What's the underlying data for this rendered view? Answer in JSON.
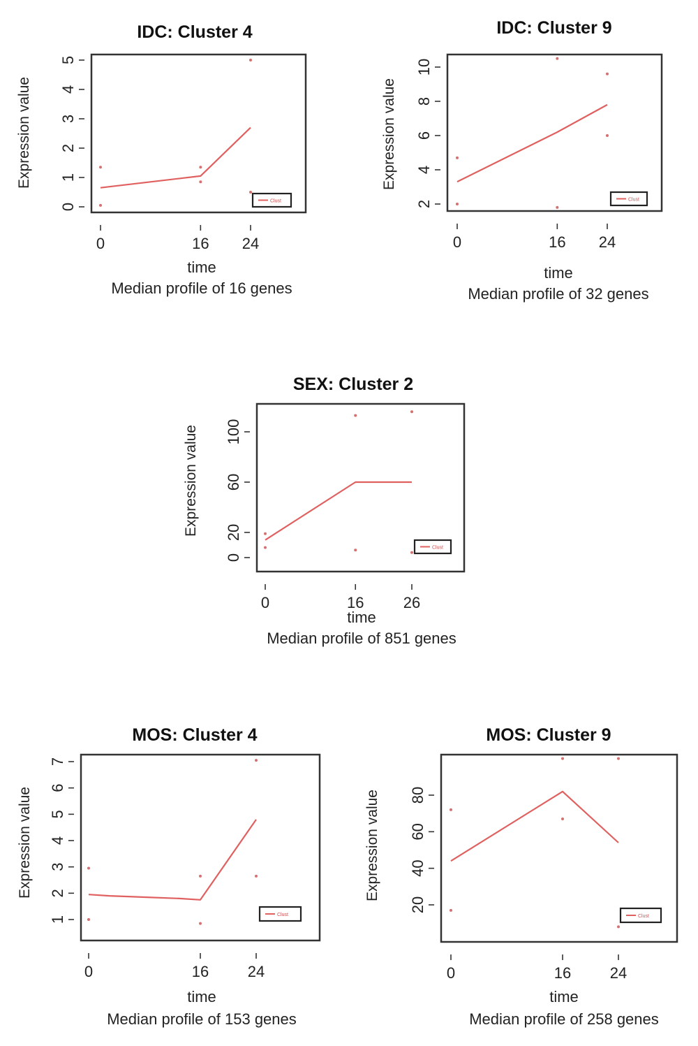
{
  "charts": [
    {
      "id": "idc-cluster-4",
      "title": "IDC: Cluster 4",
      "xlabel": "time",
      "ylabel": "Expression value",
      "caption": "Median profile of 16 genes",
      "chart_data": {
        "type": "line",
        "x_ticks": [
          0,
          16,
          24
        ],
        "y_ticks": [
          0,
          1,
          2,
          3,
          4,
          5
        ],
        "series": [
          {
            "x": [
              0,
              16,
              24
            ],
            "y": [
              0.65,
              1.05,
              2.7
            ]
          }
        ],
        "points": [
          [
            0,
            1.35
          ],
          [
            0,
            0.05
          ],
          [
            16,
            1.35
          ],
          [
            16,
            0.85
          ],
          [
            24,
            5.0
          ],
          [
            24,
            0.5
          ]
        ],
        "legend": "Clust"
      }
    },
    {
      "id": "idc-cluster-9",
      "title": "IDC: Cluster 9",
      "xlabel": "time",
      "ylabel": "Expression value",
      "caption": "Median profile of 32 genes",
      "chart_data": {
        "type": "line",
        "x_ticks": [
          0,
          16,
          24
        ],
        "y_ticks": [
          2,
          4,
          6,
          8,
          10
        ],
        "series": [
          {
            "x": [
              0,
              16,
              24
            ],
            "y": [
              3.3,
              6.2,
              7.8
            ]
          }
        ],
        "points": [
          [
            0,
            4.7
          ],
          [
            0,
            2.0
          ],
          [
            16,
            10.5
          ],
          [
            16,
            1.8
          ],
          [
            24,
            9.6
          ],
          [
            24,
            6.0
          ]
        ],
        "legend": "Clust"
      }
    },
    {
      "id": "sex-cluster-2",
      "title": "SEX: Cluster 2",
      "xlabel": "time",
      "ylabel": "Expression value",
      "caption": "Median profile of 851 genes",
      "chart_data": {
        "type": "line",
        "x_ticks": [
          0,
          16,
          26
        ],
        "y_ticks": [
          0,
          20,
          60,
          100
        ],
        "series": [
          {
            "x": [
              0,
              16,
              26
            ],
            "y": [
              14,
              60,
              60
            ]
          }
        ],
        "points": [
          [
            0,
            19
          ],
          [
            0,
            8
          ],
          [
            16,
            113
          ],
          [
            16,
            6
          ],
          [
            26,
            116
          ],
          [
            26,
            4
          ]
        ],
        "legend": "Clust"
      }
    },
    {
      "id": "mos-cluster-4",
      "title": "MOS: Cluster 4",
      "xlabel": "time",
      "ylabel": "Expression value",
      "caption": "Median profile of 153 genes",
      "chart_data": {
        "type": "line",
        "x_ticks": [
          0,
          16,
          24
        ],
        "y_ticks": [
          1,
          2,
          3,
          4,
          5,
          6,
          7
        ],
        "series": [
          {
            "x": [
              0,
              3,
              8,
              13,
              16,
              24
            ],
            "y": [
              1.95,
              1.9,
              1.85,
              1.8,
              1.75,
              4.8
            ]
          }
        ],
        "points": [
          [
            0,
            2.95
          ],
          [
            0,
            1.0
          ],
          [
            16,
            2.65
          ],
          [
            16,
            0.85
          ],
          [
            24,
            7.05
          ],
          [
            24,
            2.65
          ]
        ],
        "legend": "Clust"
      }
    },
    {
      "id": "mos-cluster-9",
      "title": "MOS: Cluster 9",
      "xlabel": "time",
      "ylabel": "Expression value",
      "caption": "Median profile of 258 genes",
      "chart_data": {
        "type": "line",
        "x_ticks": [
          0,
          16,
          24
        ],
        "y_ticks": [
          20,
          40,
          60,
          80
        ],
        "series": [
          {
            "x": [
              0,
              16,
              24
            ],
            "y": [
              44,
              82,
              54
            ]
          }
        ],
        "points": [
          [
            0,
            72
          ],
          [
            0,
            17
          ],
          [
            16,
            100
          ],
          [
            16,
            67
          ],
          [
            24,
            100
          ],
          [
            24,
            8
          ]
        ],
        "legend": "Clust"
      }
    }
  ]
}
